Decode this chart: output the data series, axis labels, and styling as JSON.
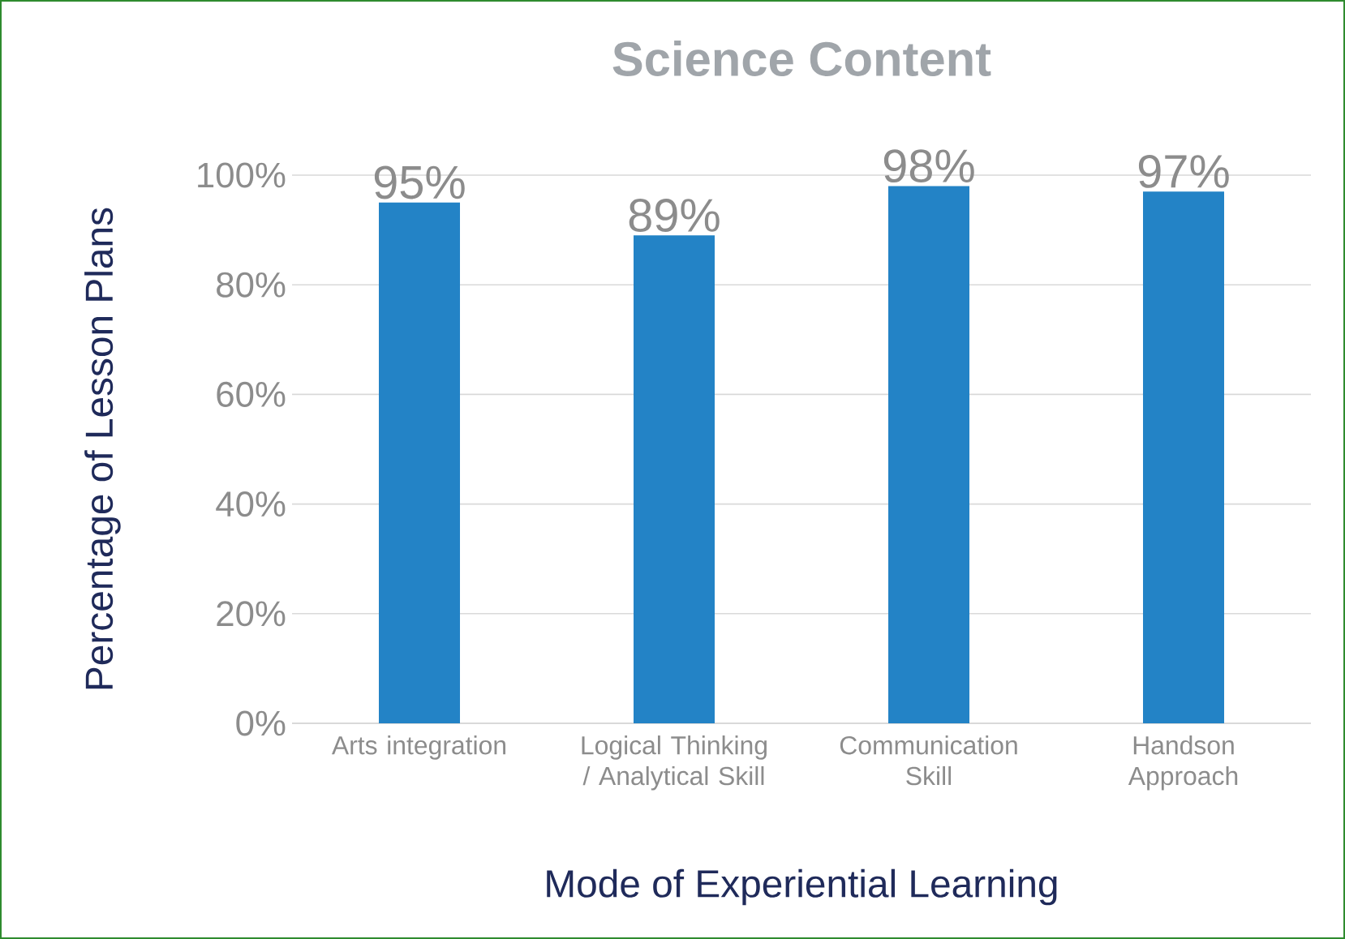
{
  "chart_data": {
    "type": "bar",
    "title": "Science Content",
    "xlabel": "Mode of Experiential Learning",
    "ylabel": "Percentage of Lesson Plans",
    "categories": [
      "Arts integration",
      "Logical Thinking / Analytical Skill",
      "Communication Skill",
      "Handson Approach"
    ],
    "values": [
      95,
      89,
      98,
      97
    ],
    "value_labels": [
      "95%",
      "89%",
      "98%",
      "97%"
    ],
    "color": "#2383c6",
    "ylim": [
      0,
      100
    ],
    "yticks": [
      {
        "value": 0,
        "label": "0%"
      },
      {
        "value": 20,
        "label": "20%"
      },
      {
        "value": 40,
        "label": "40%"
      },
      {
        "value": 60,
        "label": "60%"
      },
      {
        "value": 80,
        "label": "80%"
      },
      {
        "value": 100,
        "label": "100%"
      }
    ],
    "grid": "y"
  }
}
